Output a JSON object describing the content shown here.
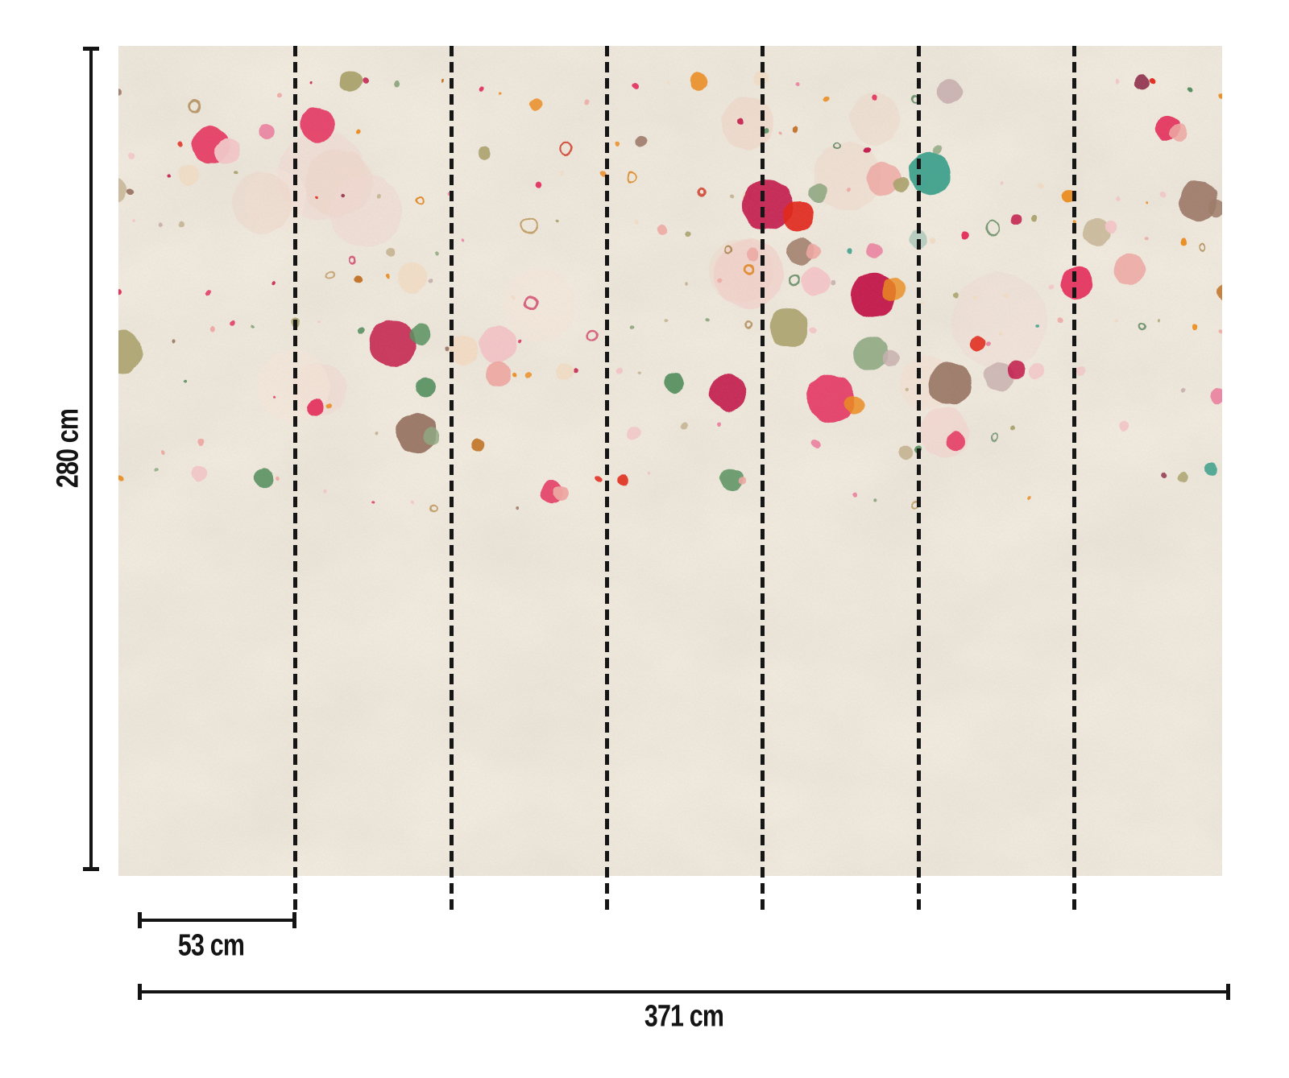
{
  "diagram": {
    "type": "wallpaper-panel-dimension-diagram",
    "height_label": "280 cm",
    "panel_width_label": "53 cm",
    "total_width_label": "371 cm",
    "panel_count": 7,
    "seam_count": 6,
    "annotation_color": "#141414"
  },
  "wallpaper": {
    "background_color": "#f1eade",
    "texture_tint": "#beb2a2",
    "pattern": "dot-garland-strings",
    "dot_palette": [
      {
        "c": "#e5335e",
        "w": 8
      },
      {
        "c": "#c41d4d",
        "w": 5
      },
      {
        "c": "#e2271b",
        "w": 3
      },
      {
        "c": "#ec8c20",
        "w": 9
      },
      {
        "c": "#c3742a",
        "w": 4
      },
      {
        "c": "#57905f",
        "w": 4
      },
      {
        "c": "#8fa982",
        "w": 5
      },
      {
        "c": "#3ba18b",
        "w": 2
      },
      {
        "c": "#aba36e",
        "w": 6
      },
      {
        "c": "#c7b696",
        "w": 7
      },
      {
        "c": "#9d7a69",
        "w": 4
      },
      {
        "c": "#8e2f4a",
        "w": 3
      },
      {
        "c": "#efa8a3",
        "w": 7
      },
      {
        "c": "#f3c6c8",
        "w": 9
      },
      {
        "c": "#ec7fa0",
        "w": 4
      },
      {
        "c": "#f1dcc5",
        "w": 8
      },
      {
        "c": "#b7cdc1",
        "w": 3
      },
      {
        "c": "#c9b2b0",
        "w": 3
      }
    ],
    "ring_palette": [
      "#d23b2a",
      "#e08a28",
      "#b08a56",
      "#6a8f6a",
      "#d24b6e",
      "#c2a06a"
    ],
    "haze_palette": [
      "#f4decf",
      "#eed3c5",
      "#f6e6da",
      "#f0d8d2",
      "#f3cfc9"
    ]
  }
}
